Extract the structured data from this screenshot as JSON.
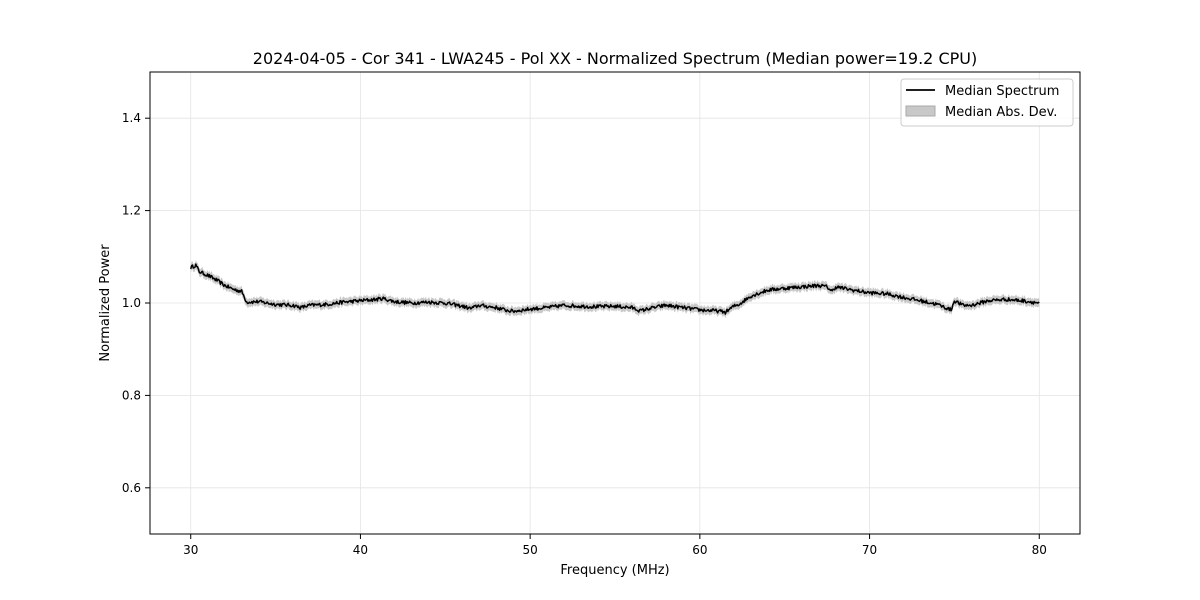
{
  "chart_data": {
    "type": "line",
    "title": "2024-04-05 - Cor 341 - LWA245 - Pol XX - Normalized Spectrum (Median power=19.2 CPU)",
    "xlabel": "Frequency (MHz)",
    "ylabel": "Normalized Power",
    "xlim": [
      27.6,
      82.4
    ],
    "ylim": [
      0.5,
      1.5
    ],
    "xticks": [
      30,
      40,
      50,
      60,
      70,
      80
    ],
    "yticks": [
      0.6,
      0.8,
      1.0,
      1.2,
      1.4
    ],
    "xtick_labels": [
      "30",
      "40",
      "50",
      "60",
      "70",
      "80"
    ],
    "ytick_labels": [
      "0.6",
      "0.8",
      "1.0",
      "1.2",
      "1.4"
    ],
    "grid": true,
    "legend_position": "top-right",
    "legend": {
      "line_label": "Median Spectrum",
      "band_label": "Median Abs. Dev."
    },
    "series": [
      {
        "name": "Median Spectrum",
        "color": "#000000",
        "band_color": "#c0c0c0",
        "band_halfwidth": 0.009,
        "x": [
          30.0,
          30.3,
          30.5,
          31.0,
          31.5,
          32.0,
          32.5,
          33.0,
          33.3,
          34.0,
          35.0,
          36.0,
          36.5,
          37.0,
          38.0,
          39.0,
          40.0,
          41.0,
          41.3,
          42.0,
          43.0,
          44.0,
          45.0,
          46.0,
          46.5,
          47.0,
          48.0,
          48.5,
          49.0,
          50.0,
          51.0,
          52.0,
          53.0,
          54.0,
          55.0,
          56.0,
          56.5,
          57.0,
          58.0,
          59.0,
          60.0,
          61.0,
          61.5,
          62.0,
          62.3,
          63.0,
          64.0,
          65.0,
          66.0,
          67.0,
          67.5,
          67.8,
          68.0,
          69.0,
          70.0,
          71.0,
          72.0,
          73.0,
          74.0,
          74.8,
          75.0,
          75.5,
          76.0,
          77.0,
          78.0,
          79.0,
          80.0
        ],
        "y": [
          1.077,
          1.082,
          1.068,
          1.06,
          1.05,
          1.038,
          1.03,
          1.025,
          1.002,
          1.003,
          0.997,
          0.995,
          0.99,
          0.995,
          0.997,
          1.002,
          1.005,
          1.008,
          1.01,
          1.003,
          1.0,
          1.002,
          1.0,
          0.993,
          0.988,
          0.995,
          0.99,
          0.985,
          0.982,
          0.987,
          0.99,
          0.995,
          0.993,
          0.992,
          0.993,
          0.99,
          0.983,
          0.988,
          0.995,
          0.99,
          0.985,
          0.983,
          0.98,
          0.993,
          0.997,
          1.015,
          1.028,
          1.032,
          1.035,
          1.038,
          1.035,
          1.025,
          1.035,
          1.028,
          1.022,
          1.02,
          1.012,
          1.005,
          0.997,
          0.985,
          1.005,
          0.995,
          0.995,
          1.005,
          1.008,
          1.005,
          1.0
        ]
      }
    ]
  }
}
